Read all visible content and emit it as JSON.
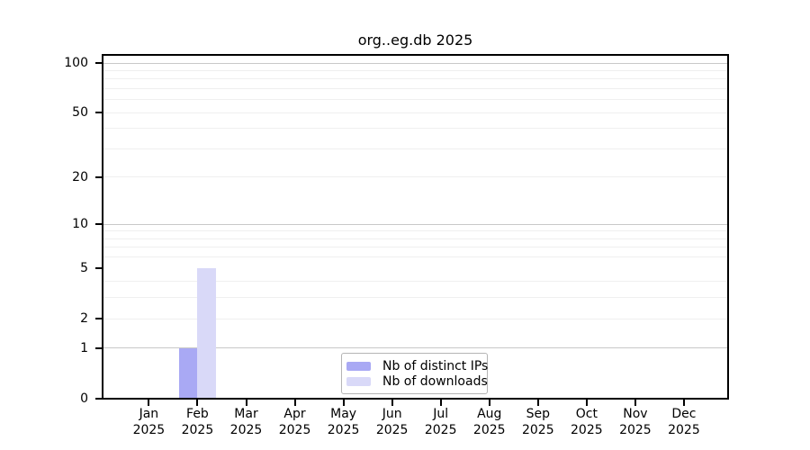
{
  "chart_data": {
    "type": "bar",
    "title": "org..eg.db 2025",
    "categories": [
      "Jan",
      "Feb",
      "Mar",
      "Apr",
      "May",
      "Jun",
      "Jul",
      "Aug",
      "Sep",
      "Oct",
      "Nov",
      "Dec"
    ],
    "year": "2025",
    "series": [
      {
        "name": "Nb of distinct IPs",
        "color": "#a9a9f4",
        "values": [
          0,
          1,
          0,
          0,
          0,
          0,
          0,
          0,
          0,
          0,
          0,
          0
        ]
      },
      {
        "name": "Nb of downloads",
        "color": "#d9d9f8",
        "values": [
          0,
          5,
          0,
          0,
          0,
          0,
          0,
          0,
          0,
          0,
          0,
          0
        ]
      }
    ],
    "xlabel": "",
    "ylabel": "",
    "y_axis": {
      "scale": "log1p",
      "tick_values": [
        0,
        1,
        2,
        5,
        10,
        20,
        50,
        100
      ],
      "tick_labels": [
        "0",
        "1",
        "2",
        "5",
        "10",
        "20",
        "50",
        "100"
      ],
      "major_gridlines": [
        1,
        10,
        100
      ],
      "minor_gridlines": [
        2,
        3,
        4,
        6,
        7,
        8,
        9,
        20,
        30,
        40,
        50,
        60,
        70,
        80,
        90
      ],
      "ylim": [
        0,
        113
      ]
    },
    "legend": {
      "position": "inside-bottom-center",
      "entries": [
        "Nb of distinct IPs",
        "Nb of downloads"
      ]
    },
    "style": {
      "major_grid_color": "#c8c8c8",
      "minor_grid_color": "#efefef",
      "spine_color": "#000000",
      "background": "#ffffff"
    }
  }
}
